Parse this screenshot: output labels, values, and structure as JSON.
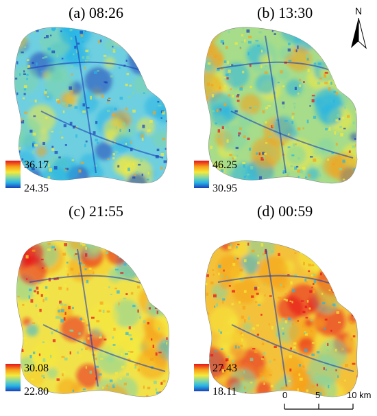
{
  "panels": [
    {
      "title": "(a) 08:26",
      "legend_max": "36.17",
      "legend_min": "24.35"
    },
    {
      "title": "(b) 13:30",
      "legend_max": "46.25",
      "legend_min": "30.95"
    },
    {
      "title": "(c) 21:55",
      "legend_max": "30.08",
      "legend_min": "22.80"
    },
    {
      "title": "(d) 00:59",
      "legend_max": "27.43",
      "legend_min": "18.11"
    }
  ],
  "north_label": "N",
  "scale_bar": {
    "labels": [
      "0",
      "5",
      "10 km"
    ]
  },
  "colors": {
    "ramp": [
      "#1b3fb8",
      "#27b5e6",
      "#7fd6a8",
      "#f5e93a",
      "#f6a11a",
      "#e8101c"
    ]
  }
}
